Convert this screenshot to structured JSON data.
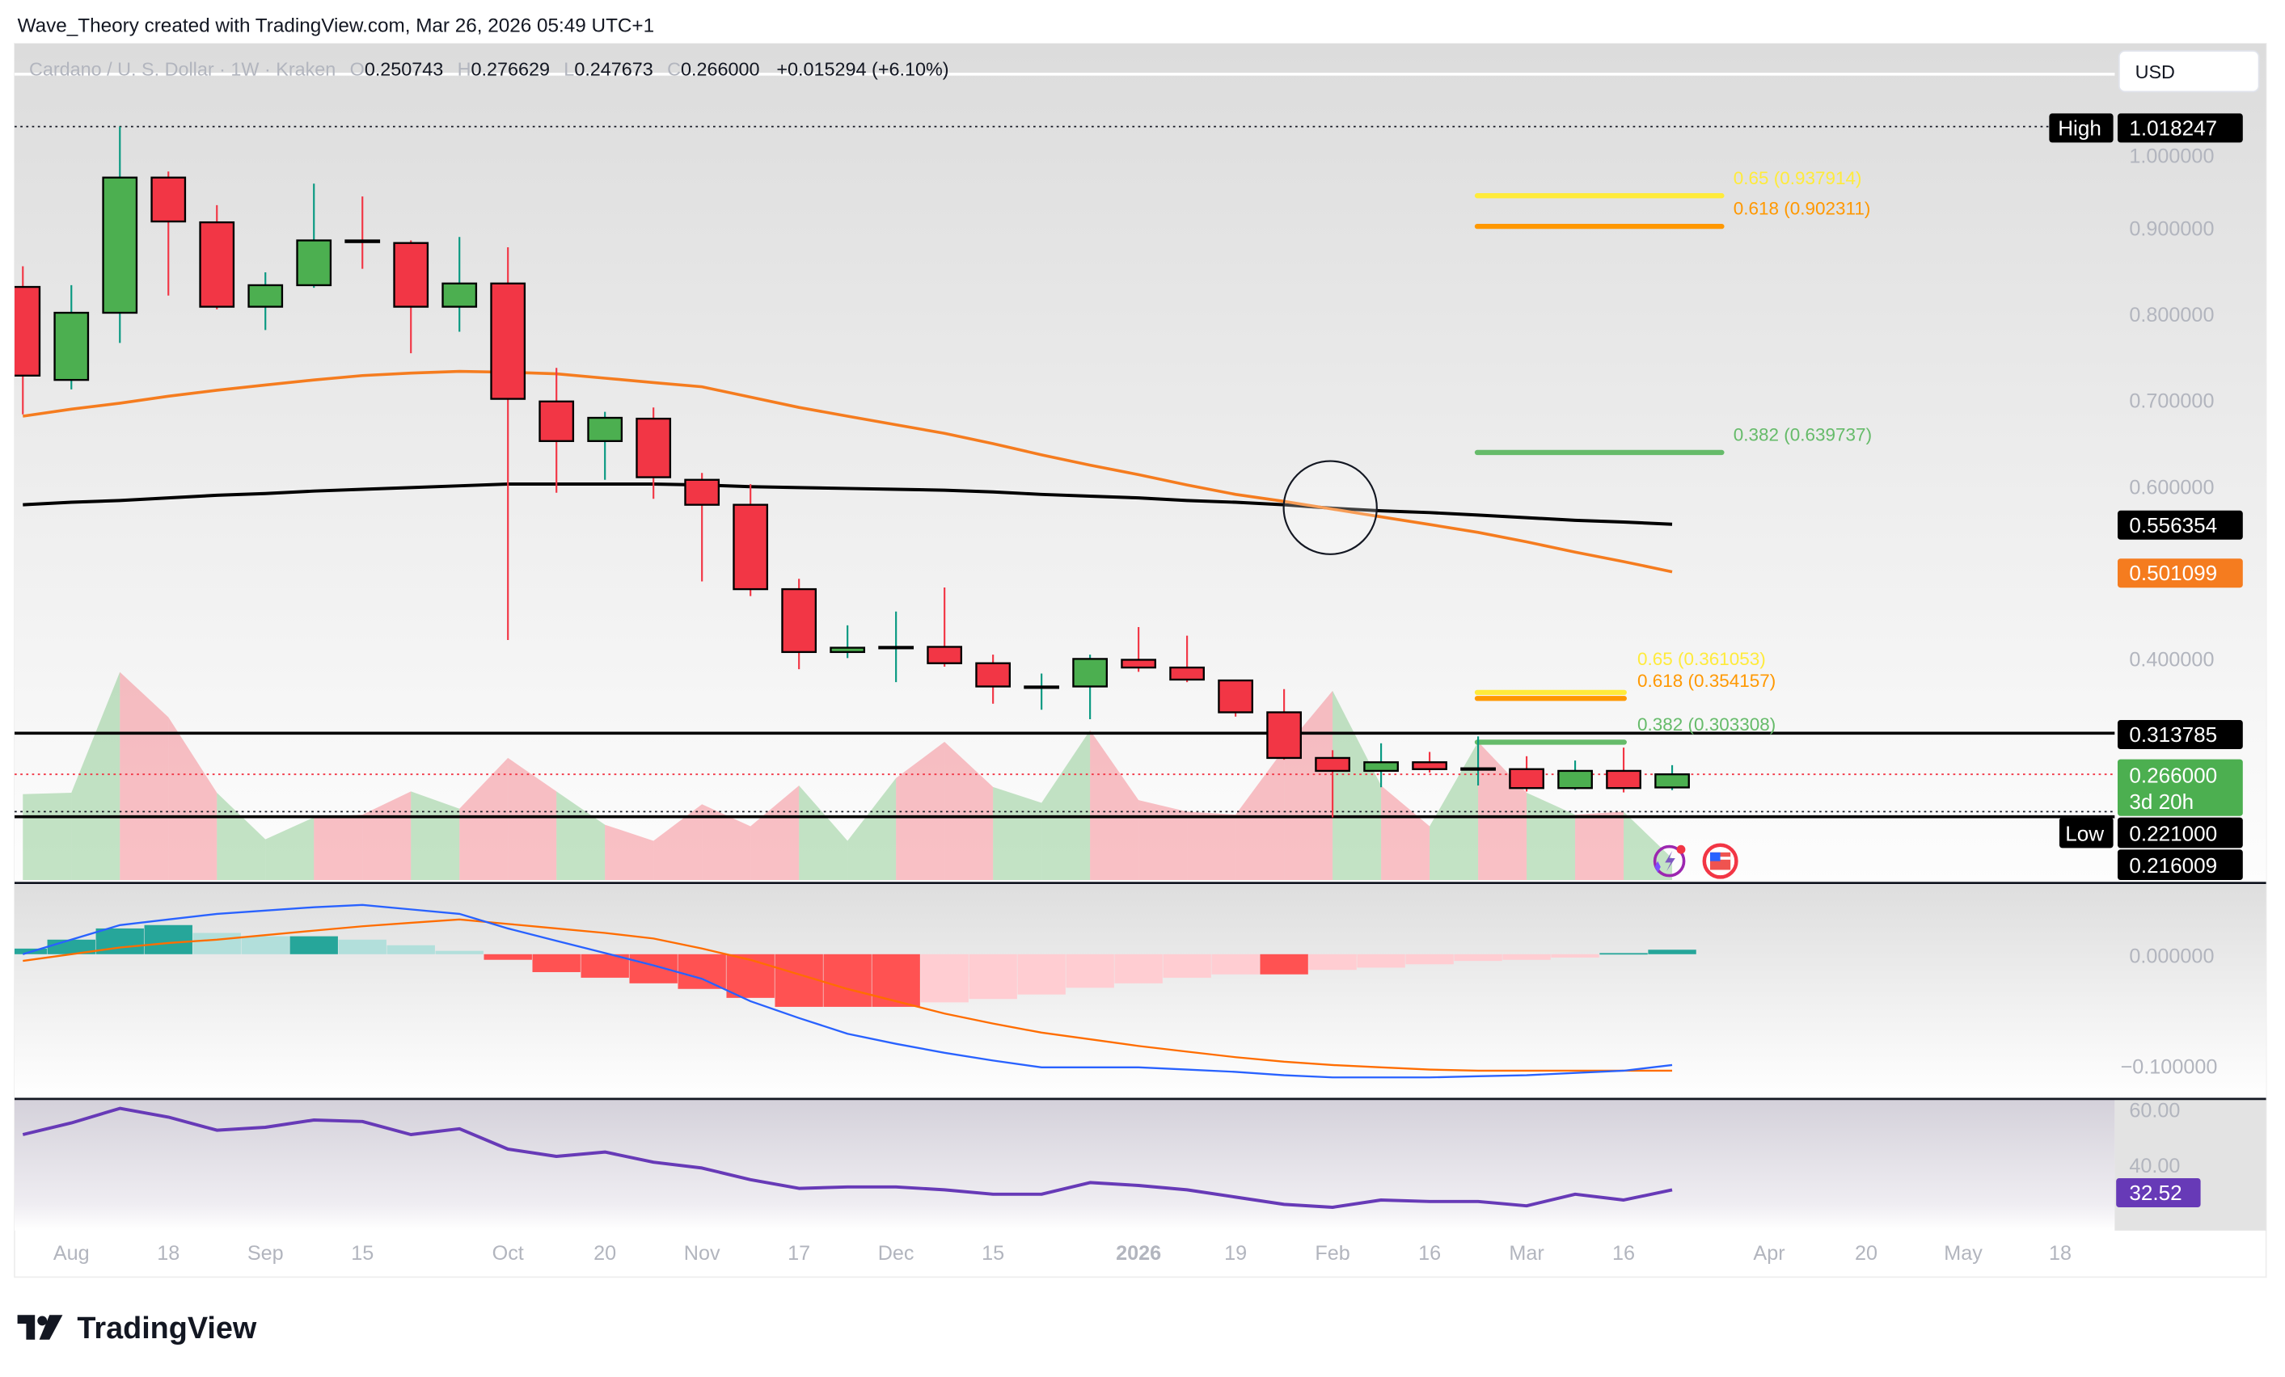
{
  "watermark": "Wave_Theory created with TradingView.com, Mar 26, 2026 05:49 UTC+1",
  "legend": {
    "symbol": "Cardano / U. S. Dollar · 1W · Kraken",
    "o_label": "O",
    "o": "0.250743",
    "h_label": "H",
    "h": "0.276629",
    "l_label": "L",
    "l": "0.247673",
    "c_label": "C",
    "c": "0.266000",
    "change": "+0.015294 (+6.10%)"
  },
  "currency_button": "USD",
  "price_axis": {
    "ticks": [
      "1.000000",
      "0.900000",
      "0.800000",
      "0.700000",
      "0.600000",
      "0.400000"
    ],
    "high_label": "High",
    "high_value": "1.018247",
    "ma_black_value": "0.556354",
    "ma_orange_value": "0.501099",
    "resistance_value": "0.313785",
    "last_price": "0.266000",
    "countdown": "3d 20h",
    "low_label": "Low",
    "low_value": "0.221000",
    "extra_value": "0.216009"
  },
  "macd_axis": {
    "ticks": [
      "0.000000",
      "−0.100000"
    ]
  },
  "rsi_axis": {
    "ticks": [
      "60.00",
      "40.00"
    ],
    "value": "32.52"
  },
  "time_axis": [
    "Aug",
    "18",
    "Sep",
    "15",
    "Oct",
    "20",
    "Nov",
    "17",
    "Dec",
    "15",
    "2026",
    "19",
    "Feb",
    "16",
    "Mar",
    "16",
    "Apr",
    "20",
    "May",
    "18"
  ],
  "fib_upper": [
    {
      "label": "0.65 (0.937914)",
      "price": 0.937914,
      "color": "#ffeb3b"
    },
    {
      "label": "0.618 (0.902311)",
      "price": 0.902311,
      "color": "#ff9800"
    },
    {
      "label": "0.382 (0.639737)",
      "price": 0.639737,
      "color": "#66bb6a"
    }
  ],
  "fib_lower": [
    {
      "label": "0.65 (0.361053)",
      "price": 0.361053,
      "color": "#ffeb3b"
    },
    {
      "label": "0.618 (0.354157)",
      "price": 0.354157,
      "color": "#ff9800"
    },
    {
      "label": "0.382 (0.303308)",
      "price": 0.303308,
      "color": "#66bb6a"
    }
  ],
  "colors": {
    "up": "#4caf50",
    "down": "#f23645",
    "ma_fast": "#f57c1f",
    "ma_slow": "#000000",
    "macd": "#2962ff",
    "signal": "#ff6d00",
    "rsi": "#673ab7",
    "last": "#4caf50"
  },
  "chart_data": {
    "type": "candlestick",
    "interval": "1W",
    "candles": [
      {
        "date": "2025-07-28",
        "o": 0.832,
        "h": 0.856,
        "l": 0.684,
        "c": 0.729
      },
      {
        "date": "2025-08-04",
        "o": 0.724,
        "h": 0.834,
        "l": 0.713,
        "c": 0.802
      },
      {
        "date": "2025-08-11",
        "o": 0.802,
        "h": 1.018247,
        "l": 0.767,
        "c": 0.959
      },
      {
        "date": "2025-08-18",
        "o": 0.959,
        "h": 0.966,
        "l": 0.822,
        "c": 0.908
      },
      {
        "date": "2025-08-25",
        "o": 0.907,
        "h": 0.927,
        "l": 0.806,
        "c": 0.809
      },
      {
        "date": "2025-09-01",
        "o": 0.809,
        "h": 0.849,
        "l": 0.782,
        "c": 0.834
      },
      {
        "date": "2025-09-08",
        "o": 0.834,
        "h": 0.952,
        "l": 0.831,
        "c": 0.886
      },
      {
        "date": "2025-09-15",
        "o": 0.886,
        "h": 0.937,
        "l": 0.853,
        "c": 0.884
      },
      {
        "date": "2025-09-22",
        "o": 0.883,
        "h": 0.886,
        "l": 0.755,
        "c": 0.809
      },
      {
        "date": "2025-09-29",
        "o": 0.809,
        "h": 0.89,
        "l": 0.78,
        "c": 0.836
      },
      {
        "date": "2025-10-06",
        "o": 0.836,
        "h": 0.878,
        "l": 0.422,
        "c": 0.702
      },
      {
        "date": "2025-10-13",
        "o": 0.699,
        "h": 0.738,
        "l": 0.593,
        "c": 0.653
      },
      {
        "date": "2025-10-20",
        "o": 0.653,
        "h": 0.687,
        "l": 0.608,
        "c": 0.68
      },
      {
        "date": "2025-10-27",
        "o": 0.679,
        "h": 0.692,
        "l": 0.586,
        "c": 0.611
      },
      {
        "date": "2025-11-03",
        "o": 0.608,
        "h": 0.616,
        "l": 0.49,
        "c": 0.579
      },
      {
        "date": "2025-11-10",
        "o": 0.579,
        "h": 0.603,
        "l": 0.473,
        "c": 0.481
      },
      {
        "date": "2025-11-17",
        "o": 0.481,
        "h": 0.493,
        "l": 0.388,
        "c": 0.408
      },
      {
        "date": "2025-11-24",
        "o": 0.408,
        "h": 0.439,
        "l": 0.401,
        "c": 0.413
      },
      {
        "date": "2025-12-01",
        "o": 0.413,
        "h": 0.455,
        "l": 0.373,
        "c": 0.414
      },
      {
        "date": "2025-12-08",
        "o": 0.414,
        "h": 0.483,
        "l": 0.391,
        "c": 0.395
      },
      {
        "date": "2025-12-15",
        "o": 0.395,
        "h": 0.405,
        "l": 0.348,
        "c": 0.368
      },
      {
        "date": "2025-12-22",
        "o": 0.368,
        "h": 0.383,
        "l": 0.341,
        "c": 0.368
      },
      {
        "date": "2025-12-29",
        "o": 0.368,
        "h": 0.405,
        "l": 0.33,
        "c": 0.4
      },
      {
        "date": "2026-01-05",
        "o": 0.399,
        "h": 0.437,
        "l": 0.385,
        "c": 0.39
      },
      {
        "date": "2026-01-12",
        "o": 0.39,
        "h": 0.427,
        "l": 0.373,
        "c": 0.376
      },
      {
        "date": "2026-01-19",
        "o": 0.375,
        "h": 0.376,
        "l": 0.333,
        "c": 0.338
      },
      {
        "date": "2026-01-26",
        "o": 0.338,
        "h": 0.365,
        "l": 0.283,
        "c": 0.285
      },
      {
        "date": "2026-02-02",
        "o": 0.285,
        "h": 0.294,
        "l": 0.216,
        "c": 0.27
      },
      {
        "date": "2026-02-09",
        "o": 0.27,
        "h": 0.302,
        "l": 0.251,
        "c": 0.28
      },
      {
        "date": "2026-02-16",
        "o": 0.28,
        "h": 0.292,
        "l": 0.268,
        "c": 0.272
      },
      {
        "date": "2026-02-23",
        "o": 0.273,
        "h": 0.31,
        "l": 0.253,
        "c": 0.273
      },
      {
        "date": "2026-03-02",
        "o": 0.272,
        "h": 0.287,
        "l": 0.246,
        "c": 0.25
      },
      {
        "date": "2026-03-09",
        "o": 0.25,
        "h": 0.282,
        "l": 0.248,
        "c": 0.27
      },
      {
        "date": "2026-03-16",
        "o": 0.27,
        "h": 0.297,
        "l": 0.245,
        "c": 0.25
      },
      {
        "date": "2026-03-23",
        "o": 0.250743,
        "h": 0.276629,
        "l": 0.247673,
        "c": 0.266
      }
    ],
    "ma_fast": [
      0.682,
      0.69,
      0.697,
      0.705,
      0.712,
      0.718,
      0.724,
      0.729,
      0.732,
      0.734,
      0.733,
      0.731,
      0.726,
      0.721,
      0.716,
      0.704,
      0.692,
      0.682,
      0.672,
      0.662,
      0.65,
      0.637,
      0.625,
      0.614,
      0.602,
      0.591,
      0.583,
      0.574,
      0.565,
      0.556,
      0.547,
      0.536,
      0.524,
      0.513,
      0.501099
    ],
    "ma_slow": [
      0.579,
      0.582,
      0.584,
      0.587,
      0.59,
      0.592,
      0.595,
      0.597,
      0.599,
      0.601,
      0.603,
      0.603,
      0.603,
      0.603,
      0.602,
      0.6,
      0.599,
      0.598,
      0.597,
      0.596,
      0.594,
      0.591,
      0.589,
      0.587,
      0.584,
      0.582,
      0.579,
      0.575,
      0.572,
      0.57,
      0.567,
      0.564,
      0.561,
      0.559,
      0.556354
    ],
    "horizontal_levels": {
      "resistance": 0.313785,
      "low": 0.221
    },
    "trend_area": {
      "level": [
        40.7,
        41.4,
        98.6,
        77.2,
        41.4,
        19.3,
        29.7,
        31,
        42,
        33.8,
        57.9,
        42,
        26.2,
        18.6,
        35.9,
        25.5,
        44.8,
        18.6,
        48.3,
        65.5,
        44.1,
        36.6,
        71,
        37.9,
        32.4,
        31,
        62.1,
        89.7,
        44.8,
        25.5,
        65.5,
        41.4,
        31,
        32.4,
        10.3
      ],
      "segment_trend": [
        "g",
        "g",
        "r",
        "r",
        "g",
        "g",
        "r",
        "r",
        "g",
        "r",
        "r",
        "g",
        "r",
        "r",
        "r",
        "r",
        "g",
        "g",
        "r",
        "r",
        "g",
        "g",
        "r",
        "r",
        "r",
        "r",
        "r",
        "g",
        "r",
        "g",
        "r",
        "g",
        "r",
        "g"
      ]
    },
    "macd": {
      "macd": [
        0.0,
        0.013,
        0.026,
        0.031,
        0.036,
        0.039,
        0.042,
        0.044,
        0.04,
        0.036,
        0.023,
        0.012,
        0.001,
        -0.01,
        -0.022,
        -0.042,
        -0.057,
        -0.071,
        -0.08,
        -0.088,
        -0.095,
        -0.101,
        -0.101,
        -0.101,
        -0.103,
        -0.105,
        -0.108,
        -0.11,
        -0.11,
        -0.11,
        -0.109,
        -0.108,
        -0.106,
        -0.104,
        -0.099
      ],
      "signal": [
        -0.006,
        0.0,
        0.006,
        0.01,
        0.013,
        0.017,
        0.021,
        0.025,
        0.028,
        0.031,
        0.027,
        0.023,
        0.019,
        0.014,
        0.005,
        -0.005,
        -0.018,
        -0.031,
        -0.042,
        -0.053,
        -0.062,
        -0.07,
        -0.076,
        -0.082,
        -0.087,
        -0.092,
        -0.096,
        -0.099,
        -0.101,
        -0.103,
        -0.104,
        -0.104,
        -0.104,
        -0.104,
        -0.104
      ],
      "histogram": [
        0.005,
        0.013,
        0.023,
        0.026,
        0.019,
        0.016,
        0.016,
        0.013,
        0.008,
        0.003,
        -0.005,
        -0.016,
        -0.021,
        -0.026,
        -0.031,
        -0.039,
        -0.047,
        -0.047,
        -0.047,
        -0.043,
        -0.04,
        -0.036,
        -0.03,
        -0.026,
        -0.021,
        -0.018,
        -0.018,
        -0.014,
        -0.012,
        -0.009,
        -0.006,
        -0.005,
        -0.003,
        0.001,
        0.004
      ]
    },
    "rsi": [
      51.5,
      55.5,
      60.5,
      57.5,
      53,
      54,
      56.5,
      56,
      51.5,
      53.5,
      46.5,
      44,
      45.5,
      42,
      40,
      36,
      33,
      33.5,
      33.5,
      32.5,
      31,
      31,
      35,
      34,
      32.5,
      30,
      27.5,
      26.5,
      29,
      28.5,
      28.5,
      27,
      31,
      29,
      32.52
    ]
  },
  "footer_logo": "TradingView"
}
